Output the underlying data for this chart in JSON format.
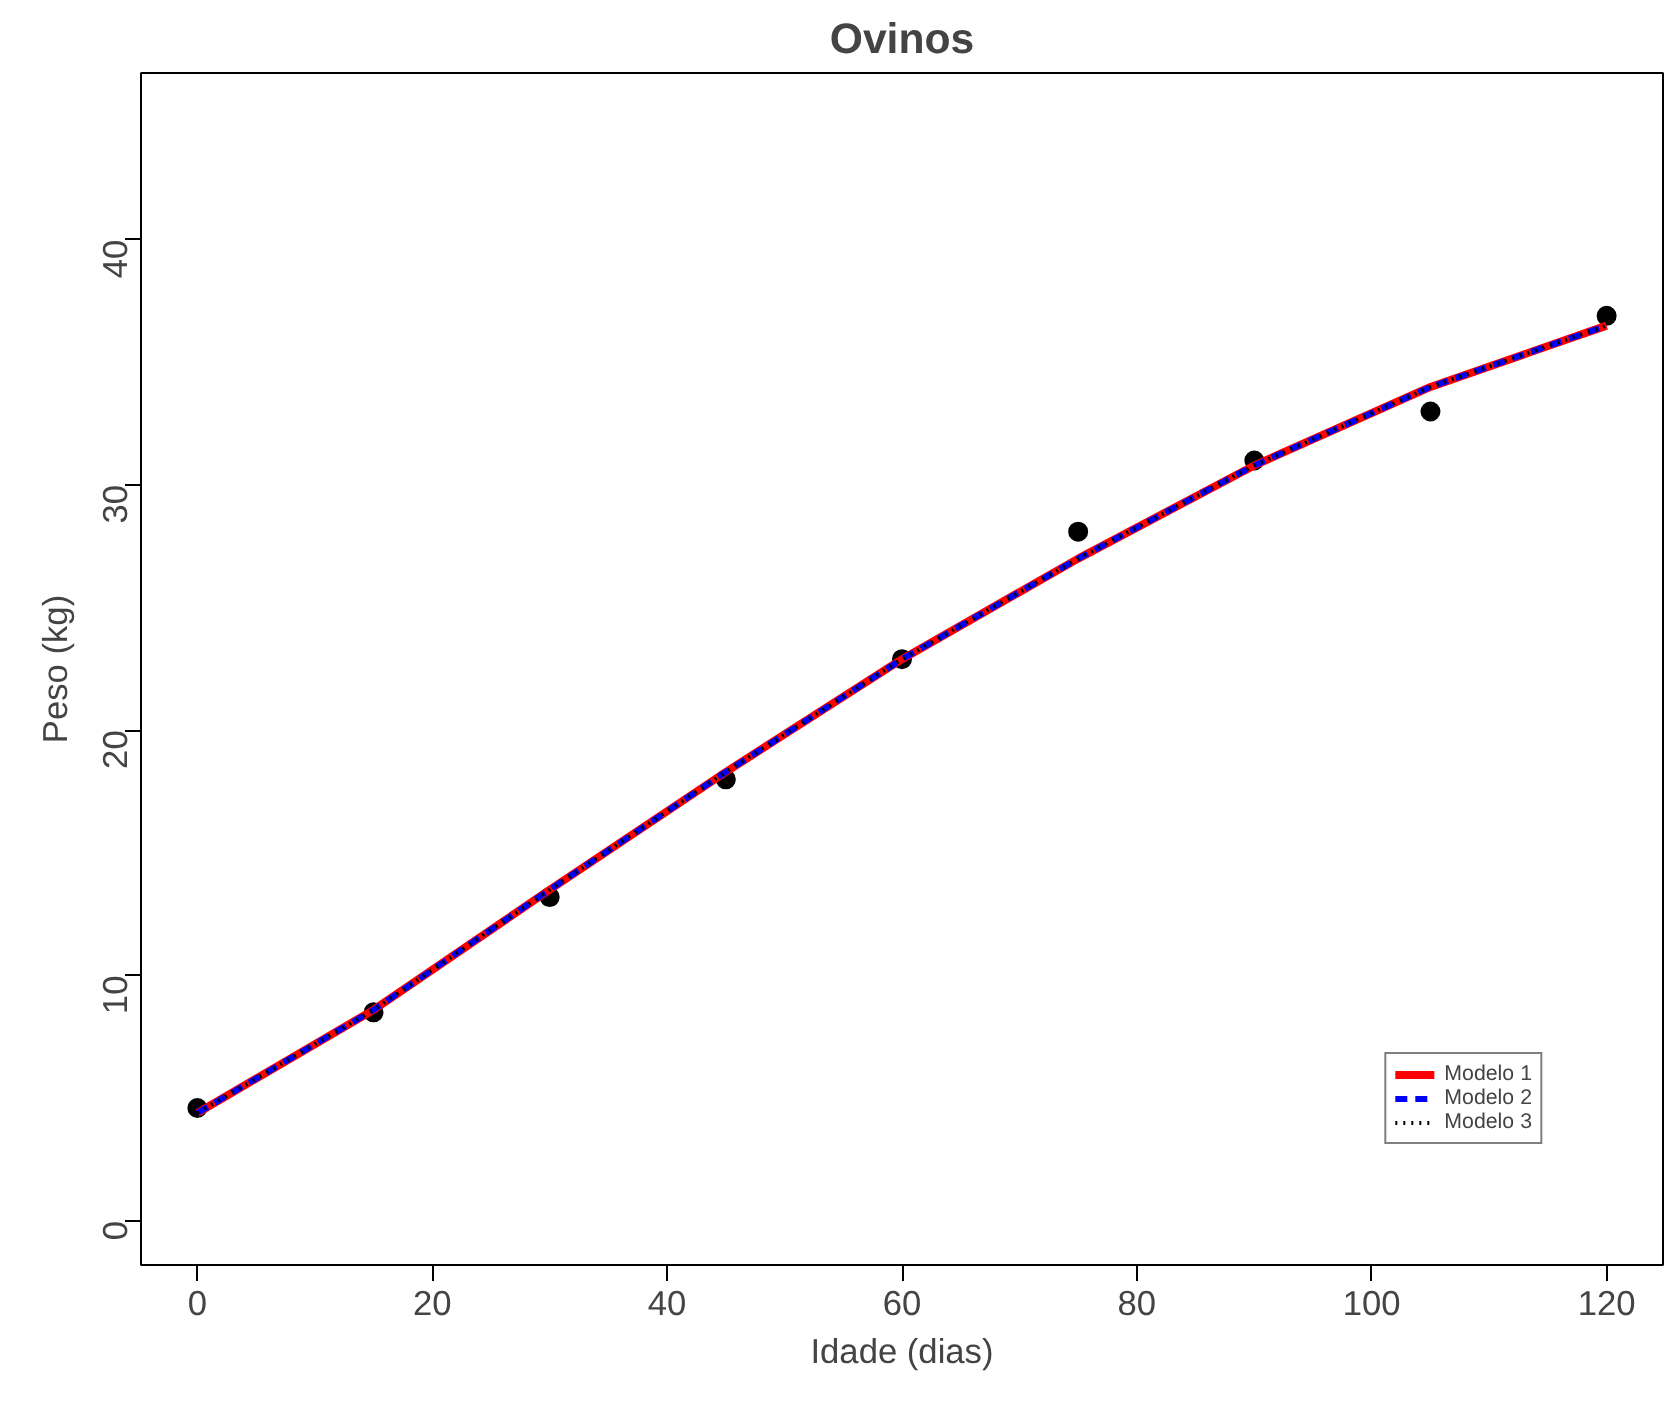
{
  "chart_data": {
    "type": "line",
    "title": "Ovinos",
    "xlabel": "Idade (dias)",
    "ylabel": "Peso (kg)",
    "x": [
      0,
      15,
      30,
      45,
      60,
      75,
      90,
      105,
      120
    ],
    "series": [
      {
        "type": "scatter",
        "color": "#000000",
        "marker": "circle",
        "values": [
          4.6,
          8.5,
          13.2,
          18.0,
          22.9,
          28.1,
          31.0,
          33.0,
          36.9
        ]
      },
      {
        "name": "Modelo 1",
        "color": "#ff0000",
        "line_style": "solid",
        "values": [
          4.4,
          8.6,
          13.5,
          18.3,
          22.9,
          27.0,
          30.8,
          34.0,
          36.5
        ]
      },
      {
        "name": "Modelo 2",
        "color": "#0000ff",
        "line_style": "dashed",
        "values": [
          4.4,
          8.6,
          13.5,
          18.3,
          22.9,
          27.0,
          30.8,
          34.0,
          36.5
        ]
      },
      {
        "name": "Modelo 3",
        "color": "#000000",
        "line_style": "dotted",
        "values": [
          4.4,
          8.6,
          13.5,
          18.3,
          22.9,
          27.0,
          30.8,
          34.0,
          36.5
        ]
      }
    ],
    "xlim": [
      -4.8,
      124.8
    ],
    "xticks": [
      0,
      20,
      40,
      60,
      80,
      100,
      120
    ],
    "ylim": [
      -1.8,
      46.8
    ],
    "yticks": [
      0,
      10,
      20,
      30,
      40
    ],
    "grid": false,
    "legend": "bottom right"
  }
}
